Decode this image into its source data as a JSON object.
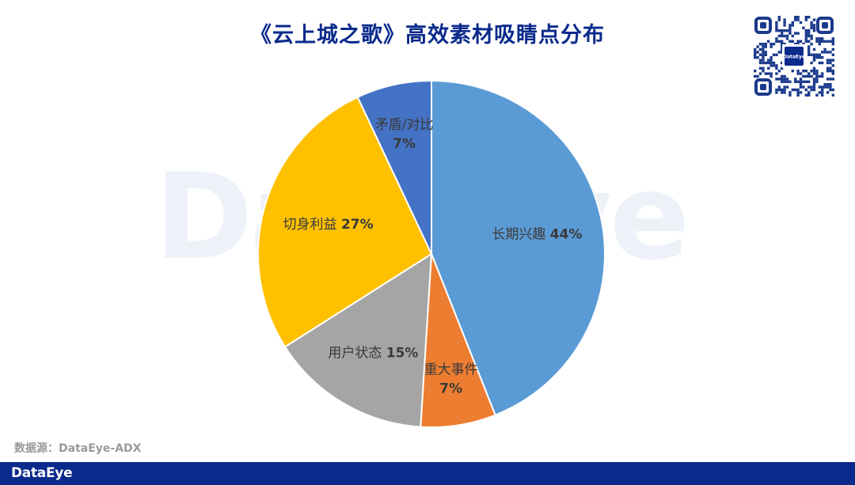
{
  "header": {
    "title": "《云上城之歌》高效素材吸睛点分布"
  },
  "watermark": {
    "text": "DataEye"
  },
  "qr_badge": {
    "text": "DataEye"
  },
  "source": {
    "text": "数据源：DataEye-ADX"
  },
  "footer": {
    "logo": "DataEye",
    "background": "#0a2a8c"
  },
  "chart_data": {
    "type": "pie",
    "title": "《云上城之歌》高效素材吸睛点分布",
    "slices": [
      {
        "label": "长期兴趣",
        "value": 44,
        "display": "44%",
        "color": "#5b9bd5"
      },
      {
        "label": "重大事件",
        "value": 7,
        "display": "7%",
        "color": "#ed7d31"
      },
      {
        "label": "用户状态",
        "value": 15,
        "display": "15%",
        "color": "#a5a5a5"
      },
      {
        "label": "切身利益",
        "value": 27,
        "display": "27%",
        "color": "#ffc000"
      },
      {
        "label": "矛盾/对比",
        "value": 7,
        "display": "7%",
        "color": "#4472c4"
      }
    ]
  }
}
